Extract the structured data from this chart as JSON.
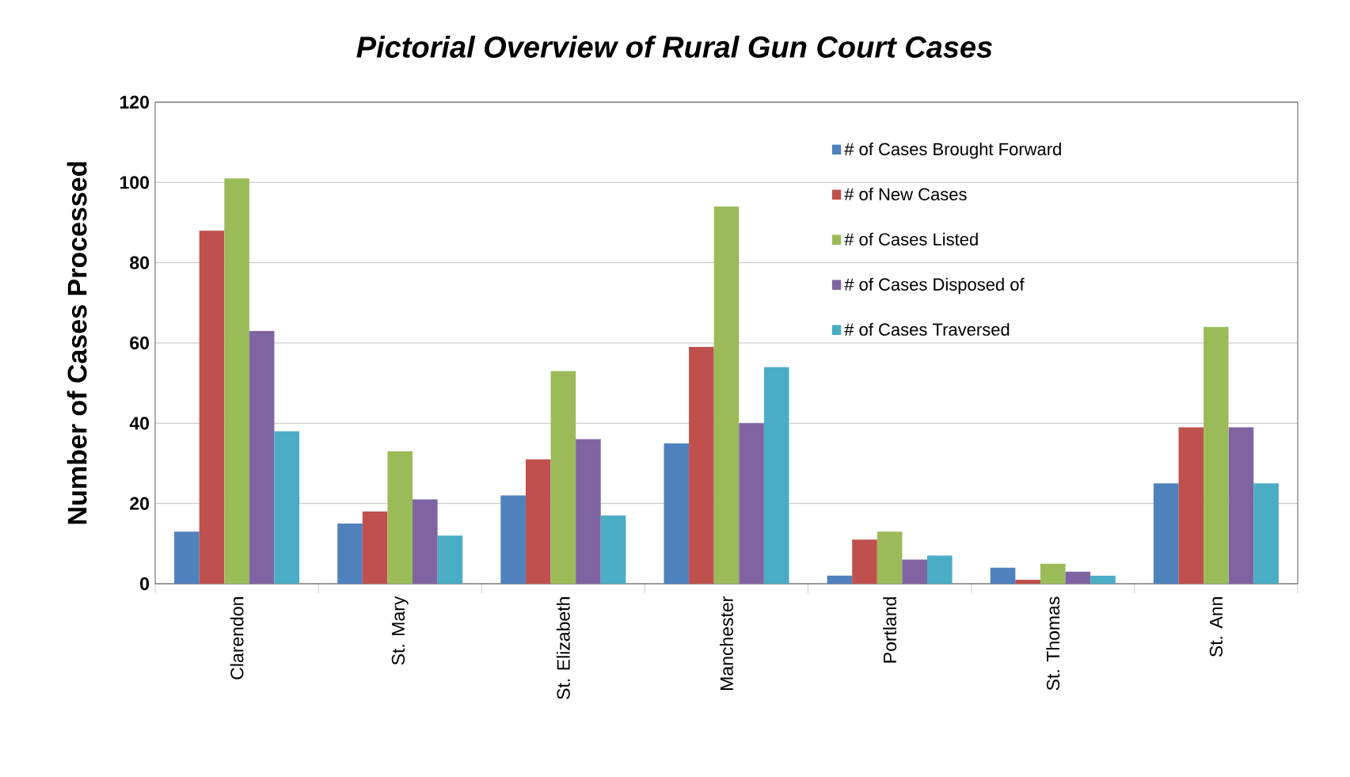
{
  "chart_data": {
    "type": "bar",
    "title": "*Pictorial Overview of Rural Gun Court Cases*",
    "ylabel": "Number of Cases Processed",
    "categories": [
      "Clarendon",
      "St. Mary",
      "St. Elizabeth",
      "Manchester",
      "Portland",
      "St. Thomas",
      "St. Ann"
    ],
    "series": [
      {
        "name": "# of Cases Brought Forward",
        "color": "#4f81bd",
        "values": [
          13,
          15,
          22,
          35,
          2,
          4,
          25
        ]
      },
      {
        "name": "# of New Cases",
        "color": "#c0504d",
        "values": [
          88,
          18,
          31,
          59,
          11,
          1,
          39
        ]
      },
      {
        "name": "# of Cases Listed",
        "color": "#9bbb59",
        "values": [
          101,
          33,
          53,
          94,
          13,
          5,
          64
        ]
      },
      {
        "name": "# of Cases Disposed of",
        "color": "#8064a2",
        "values": [
          63,
          21,
          36,
          40,
          6,
          3,
          39
        ]
      },
      {
        "name": "# of Cases Traversed",
        "color": "#4bacc6",
        "values": [
          38,
          12,
          17,
          54,
          7,
          2,
          25
        ]
      }
    ],
    "ylim": [
      0,
      120
    ],
    "yticks": [
      0,
      20,
      40,
      60,
      80,
      100,
      120
    ],
    "grid": "y",
    "legend": "top right"
  }
}
